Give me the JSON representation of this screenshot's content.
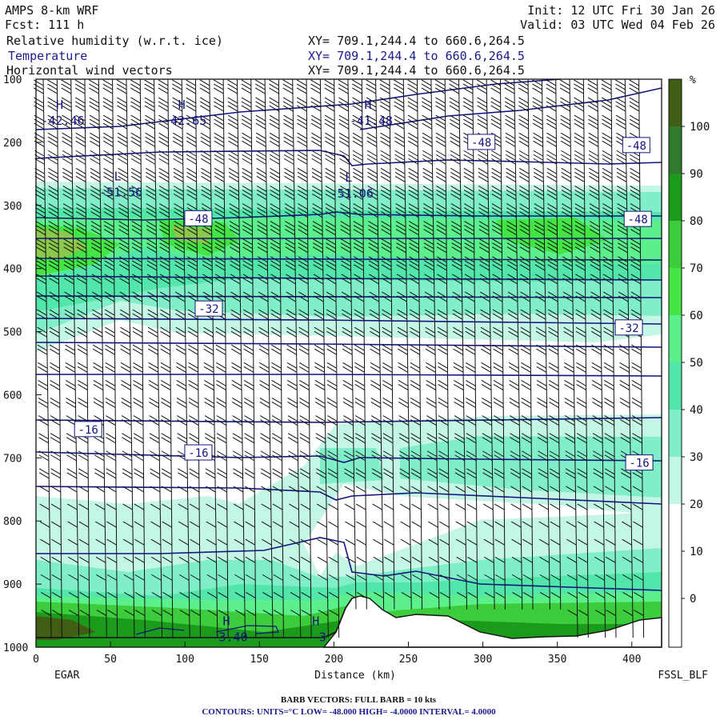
{
  "header": {
    "model": "AMPS 8-km WRF",
    "forecast": "Fcst:  111 h",
    "init": "Init: 12 UTC Fri 30 Jan 26",
    "valid": "Valid: 03 UTC Wed 04 Feb 26",
    "field1": "Relative humidity (w.r.t. ice)",
    "field2": "Temperature",
    "field3": "Horizontal wind vectors",
    "xy1": "XY= 709.1,244.4 to 660.6,264.5",
    "xy2": "XY= 709.1,244.4 to 660.6,264.5",
    "xy3": "XY= 709.1,244.4 to 660.6,264.5"
  },
  "axis": {
    "xlabel": "Distance (km)",
    "left_station": "EGAR",
    "right_station": "FSSL_BLF"
  },
  "footer": {
    "barbs": "BARB VECTORS:  FULL BARB = 10 kts",
    "contours": "CONTOURS:  UNITS=°C  LOW= -48.000      HIGH= -4.0000      INTERVAL=   4.0000"
  },
  "chart_data": {
    "type": "heatmap",
    "x_ticks": [
      0,
      50,
      100,
      150,
      200,
      250,
      300,
      350,
      400
    ],
    "xlim": [
      0,
      420
    ],
    "y_ticks": [
      100,
      200,
      300,
      400,
      500,
      600,
      700,
      800,
      900,
      1000
    ],
    "ylim": [
      100,
      1000
    ],
    "colorbar": {
      "unit": "%",
      "labels": [
        100,
        90,
        80,
        70,
        60,
        50,
        40,
        30,
        20,
        10,
        0
      ],
      "colors": [
        "#425d14",
        "#2e7a2e",
        "#1c9a1c",
        "#3ccc3c",
        "#44e444",
        "#5cf08c",
        "#52e6aa",
        "#80eec6",
        "#c4f6e6",
        "#ffffff",
        "#ffffff",
        "#ffffff",
        "#ffffff",
        "#ffffff",
        "#ffffff"
      ]
    },
    "rh_bands": [
      {
        "top": 225,
        "bottom": 430,
        "rh": 50
      },
      {
        "top": 270,
        "bottom": 360,
        "rh": 60
      },
      {
        "top": 620,
        "bottom": 700,
        "rh": 40
      },
      {
        "top": 800,
        "bottom": 1000,
        "rh": 40
      },
      {
        "top": 900,
        "bottom": 1000,
        "rh": 70
      }
    ],
    "isotherm_labels": [
      {
        "text": "-48",
        "x": 109,
        "p": 321
      },
      {
        "text": "-48",
        "x": 299,
        "p": 200
      },
      {
        "text": "-48",
        "x": 403,
        "p": 205
      },
      {
        "text": "-48",
        "x": 404,
        "p": 322
      },
      {
        "text": "-32",
        "x": 116,
        "p": 464
      },
      {
        "text": "-32",
        "x": 398,
        "p": 494
      },
      {
        "text": "-16",
        "x": 35,
        "p": 655
      },
      {
        "text": "-16",
        "x": 109,
        "p": 692
      },
      {
        "text": "-16",
        "x": 405,
        "p": 708
      }
    ],
    "extrema": [
      {
        "type": "H",
        "value": "-42.46",
        "x": 18,
        "p": 175
      },
      {
        "type": "H",
        "value": "-42.65",
        "x": 100,
        "p": 175
      },
      {
        "type": "H",
        "value": "-41.48",
        "x": 225,
        "p": 175
      },
      {
        "type": "L",
        "value": "-51.56",
        "x": 57,
        "p": 288
      },
      {
        "type": "L",
        "value": "-51.06",
        "x": 212,
        "p": 290
      },
      {
        "type": "H",
        "value": "-3.40",
        "x": 130,
        "p": 993
      },
      {
        "type": "H",
        "value": "-3",
        "x": 190,
        "p": 993
      }
    ],
    "temperature_isotherms_c": [
      -48,
      -44,
      -40,
      -36,
      -32,
      -28,
      -24,
      -20,
      -16,
      -12,
      -8,
      -4
    ]
  }
}
